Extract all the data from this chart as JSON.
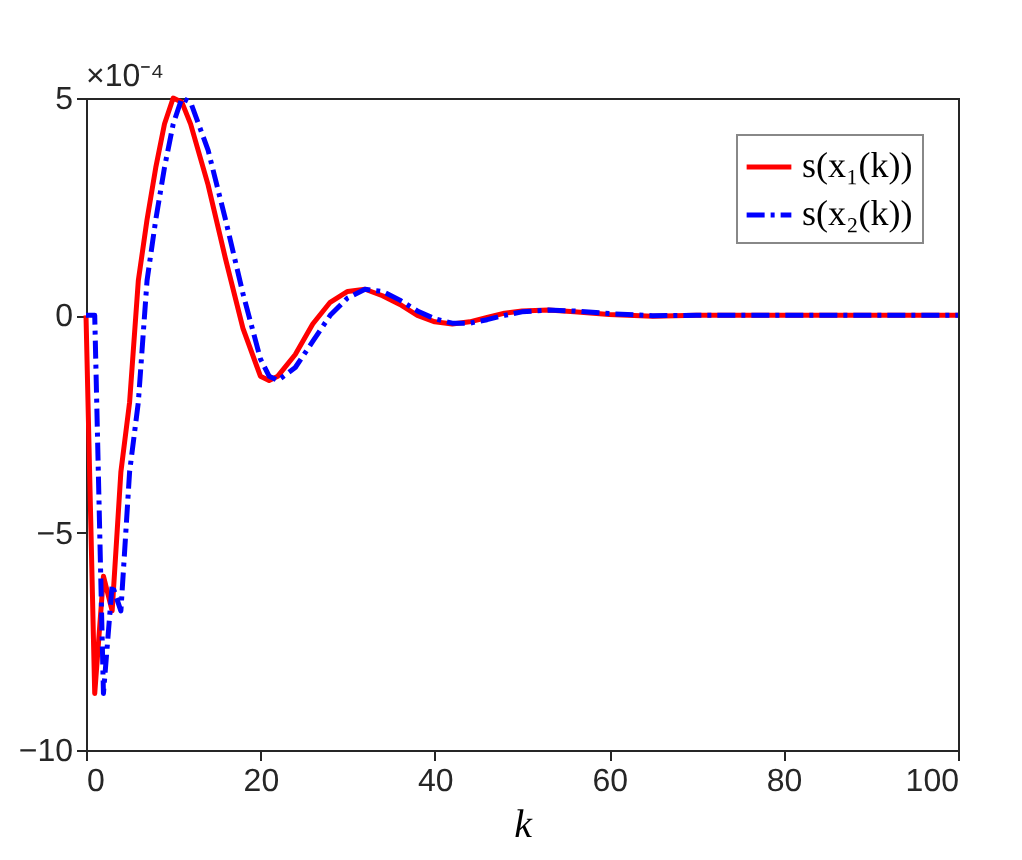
{
  "chart_data": {
    "type": "line",
    "xlabel": "k",
    "annotations": [
      "×10⁻⁴"
    ],
    "x": [
      0,
      1,
      2,
      3,
      4,
      5,
      6,
      7,
      8,
      9,
      10,
      11,
      12,
      14,
      16,
      18,
      20,
      21,
      22,
      24,
      26,
      28,
      30,
      32,
      34,
      36,
      38,
      40,
      42,
      44,
      46,
      48,
      50,
      53,
      56,
      60,
      65,
      70,
      80,
      90,
      100
    ],
    "series": [
      {
        "name": "s(x₁(k))",
        "color": "#ff0000",
        "line_style": "solid",
        "values": [
          0,
          -8.7,
          -6.0,
          -6.8,
          -3.6,
          -2.0,
          0.8,
          2.2,
          3.4,
          4.4,
          5.0,
          4.9,
          4.4,
          3.0,
          1.3,
          -0.3,
          -1.4,
          -1.5,
          -1.4,
          -0.9,
          -0.2,
          0.3,
          0.55,
          0.6,
          0.45,
          0.25,
          0,
          -0.15,
          -0.2,
          -0.15,
          -0.05,
          0.05,
          0.1,
          0.12,
          0.08,
          0.02,
          -0.02,
          0,
          0,
          0,
          0
        ]
      },
      {
        "name": "s(x₂(k))",
        "color": "#0000ff",
        "line_style": "dashed",
        "values": [
          0,
          0,
          -8.7,
          -6.2,
          -6.8,
          -3.6,
          -2.0,
          0.8,
          2.2,
          3.4,
          4.4,
          5.0,
          4.9,
          3.8,
          2.2,
          0.5,
          -1.0,
          -1.4,
          -1.5,
          -1.2,
          -0.6,
          0,
          0.4,
          0.6,
          0.55,
          0.35,
          0.1,
          -0.08,
          -0.18,
          -0.18,
          -0.1,
          0,
          0.08,
          0.12,
          0.1,
          0.04,
          -0.01,
          0,
          0,
          0,
          0
        ]
      }
    ],
    "xlim": [
      0,
      100
    ],
    "xticks": [
      0,
      20,
      40,
      60,
      80,
      100
    ],
    "ylim": [
      -10,
      5
    ],
    "yticks": [
      -10,
      -5,
      0,
      5
    ],
    "grid": false,
    "legend": "top right",
    "marker": "none"
  }
}
